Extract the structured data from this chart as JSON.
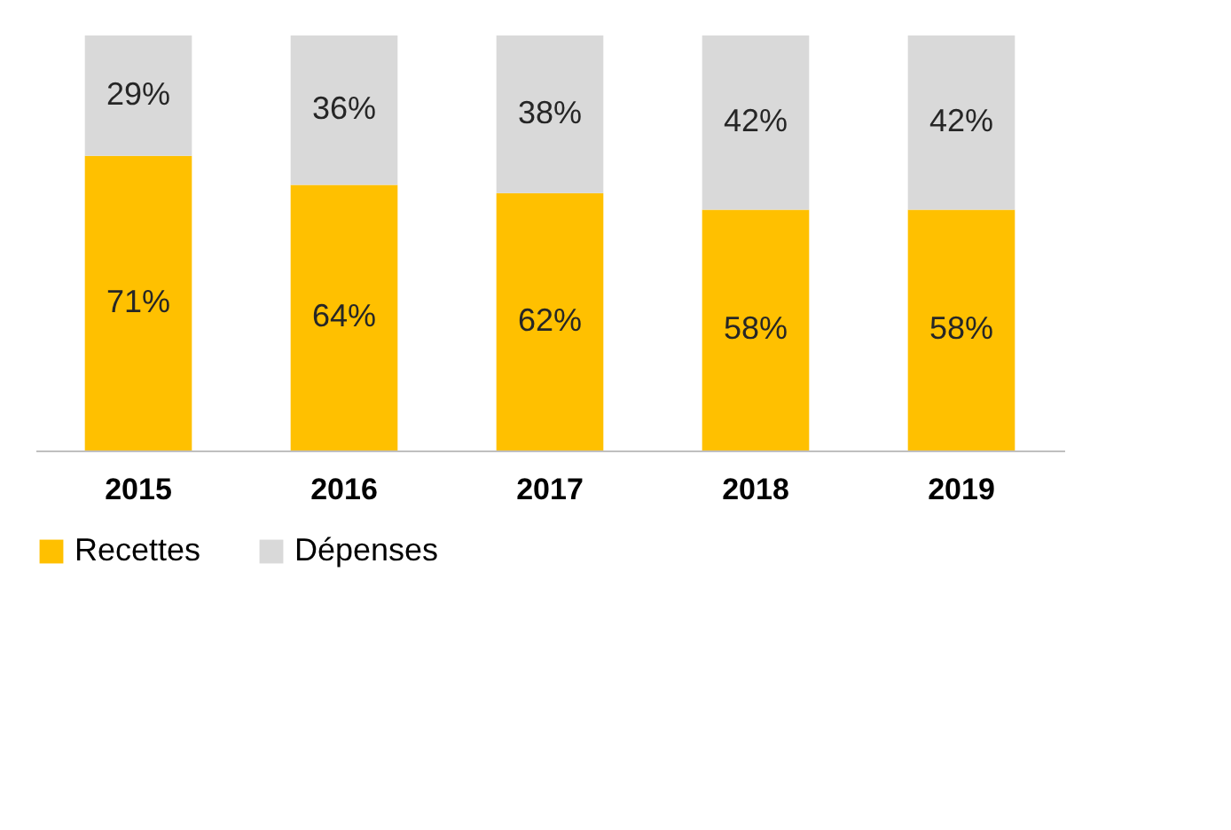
{
  "chart_data": {
    "type": "bar",
    "stacked": true,
    "categories": [
      "2015",
      "2016",
      "2017",
      "2018",
      "2019"
    ],
    "series": [
      {
        "name": "Recettes",
        "color": "#ffc000",
        "values": [
          71,
          64,
          62,
          58,
          58
        ],
        "value_labels": [
          "71%",
          "64%",
          "62%",
          "58%",
          "58%"
        ]
      },
      {
        "name": "Dépenses",
        "color": "#d9d9d9",
        "values": [
          29,
          36,
          38,
          42,
          42
        ],
        "value_labels": [
          "29%",
          "36%",
          "38%",
          "42%",
          "42%"
        ]
      }
    ],
    "legend": "bottom",
    "grid": false
  }
}
